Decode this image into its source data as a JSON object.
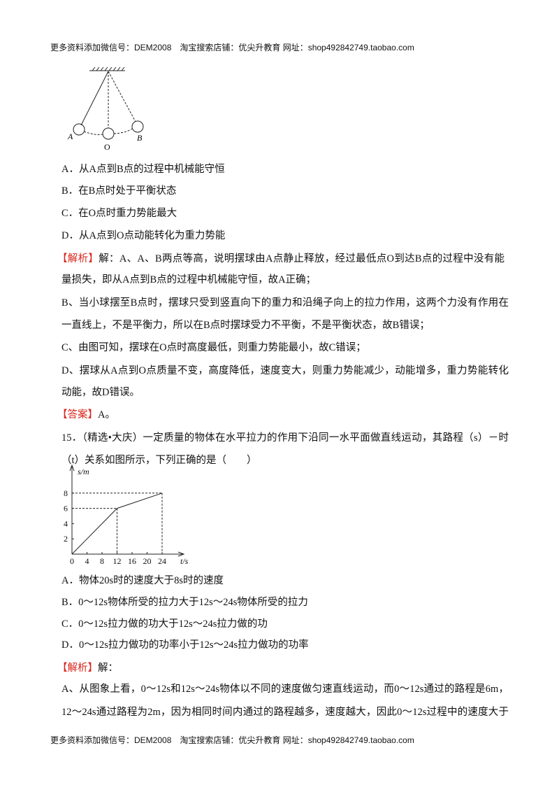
{
  "header": "更多资料添加微信号：DEM2008　淘宝搜索店铺：优尖升教育 网址：shop492842749.taobao.com",
  "figure1": {
    "labels": [
      "A",
      "O",
      "B"
    ]
  },
  "options14": [
    "A．从A点到B点的过程中机械能守恒",
    "B．在B点时处于平衡状态",
    "C．在O点时重力势能最大",
    "D．从A点到O点动能转化为重力势能"
  ],
  "analysis14": {
    "label": "【解析】",
    "lines": [
      "解：A、A、B两点等高，说明摆球由A点静止释放，经过最低点O到达B点的过程中没有能",
      "量损失，即从A点到B点的过程中机械能守恒，故A正确；",
      "B、当小球摆至B点时，摆球只受到竖直向下的重力和沿绳子向上的拉力作用，这两个力没有作用在同",
      "一直线上，不是平衡力，所以在B点时摆球受力不平衡，不是平衡状态，故B错误；",
      "C、由图可知，摆球在O点时高度最低，则重力势能最小，故C错误；",
      "D、摆球从A点到O点质量不变，高度降低，速度变大，则重力势能减少，动能增多，重力势能转化为",
      "动能，故D错误。"
    ]
  },
  "answer14": {
    "label": "【答案】",
    "text": "A。"
  },
  "question15": [
    "15．（精选•大庆）一定质量的物体在水平拉力的作用下沿同一水平面做直线运动，其路程（s）－时间",
    "（t）关系如图所示，下列正确的是（　　）"
  ],
  "figure2": {
    "ylabel": "s/m",
    "xlabel": "t/s",
    "xticks": [
      0,
      4,
      8,
      12,
      16,
      20,
      24
    ],
    "yticks": [
      2,
      4,
      6,
      8
    ],
    "t": [
      0,
      12,
      24
    ],
    "s": [
      0,
      6,
      8
    ]
  },
  "options15": [
    "A．物体20s时的速度大于8s时的速度",
    "B．0～12s物体所受的拉力大于12s～24s物体所受的拉力",
    "C．0～12s拉力做的功大于12s～24s拉力做的功",
    "D．0～12s拉力做功的功率小于12s～24s拉力做功的功率"
  ],
  "analysis15": {
    "label": "【解析】",
    "text": "解：",
    "lines": [
      "A、从图象上看，0～12s和12s～24s物体以不同的速度做匀速直线运动，而0～12s通过的路程是6m，",
      "12～24s通过路程为2m，因为相同时间内通过的路程越多，速度越大，因此0～12s过程中的速度大于"
    ]
  },
  "footer": "更多资料添加微信号：DEM2008　淘宝搜索店铺：优尖升教育 网址：shop492842749.taobao.com"
}
